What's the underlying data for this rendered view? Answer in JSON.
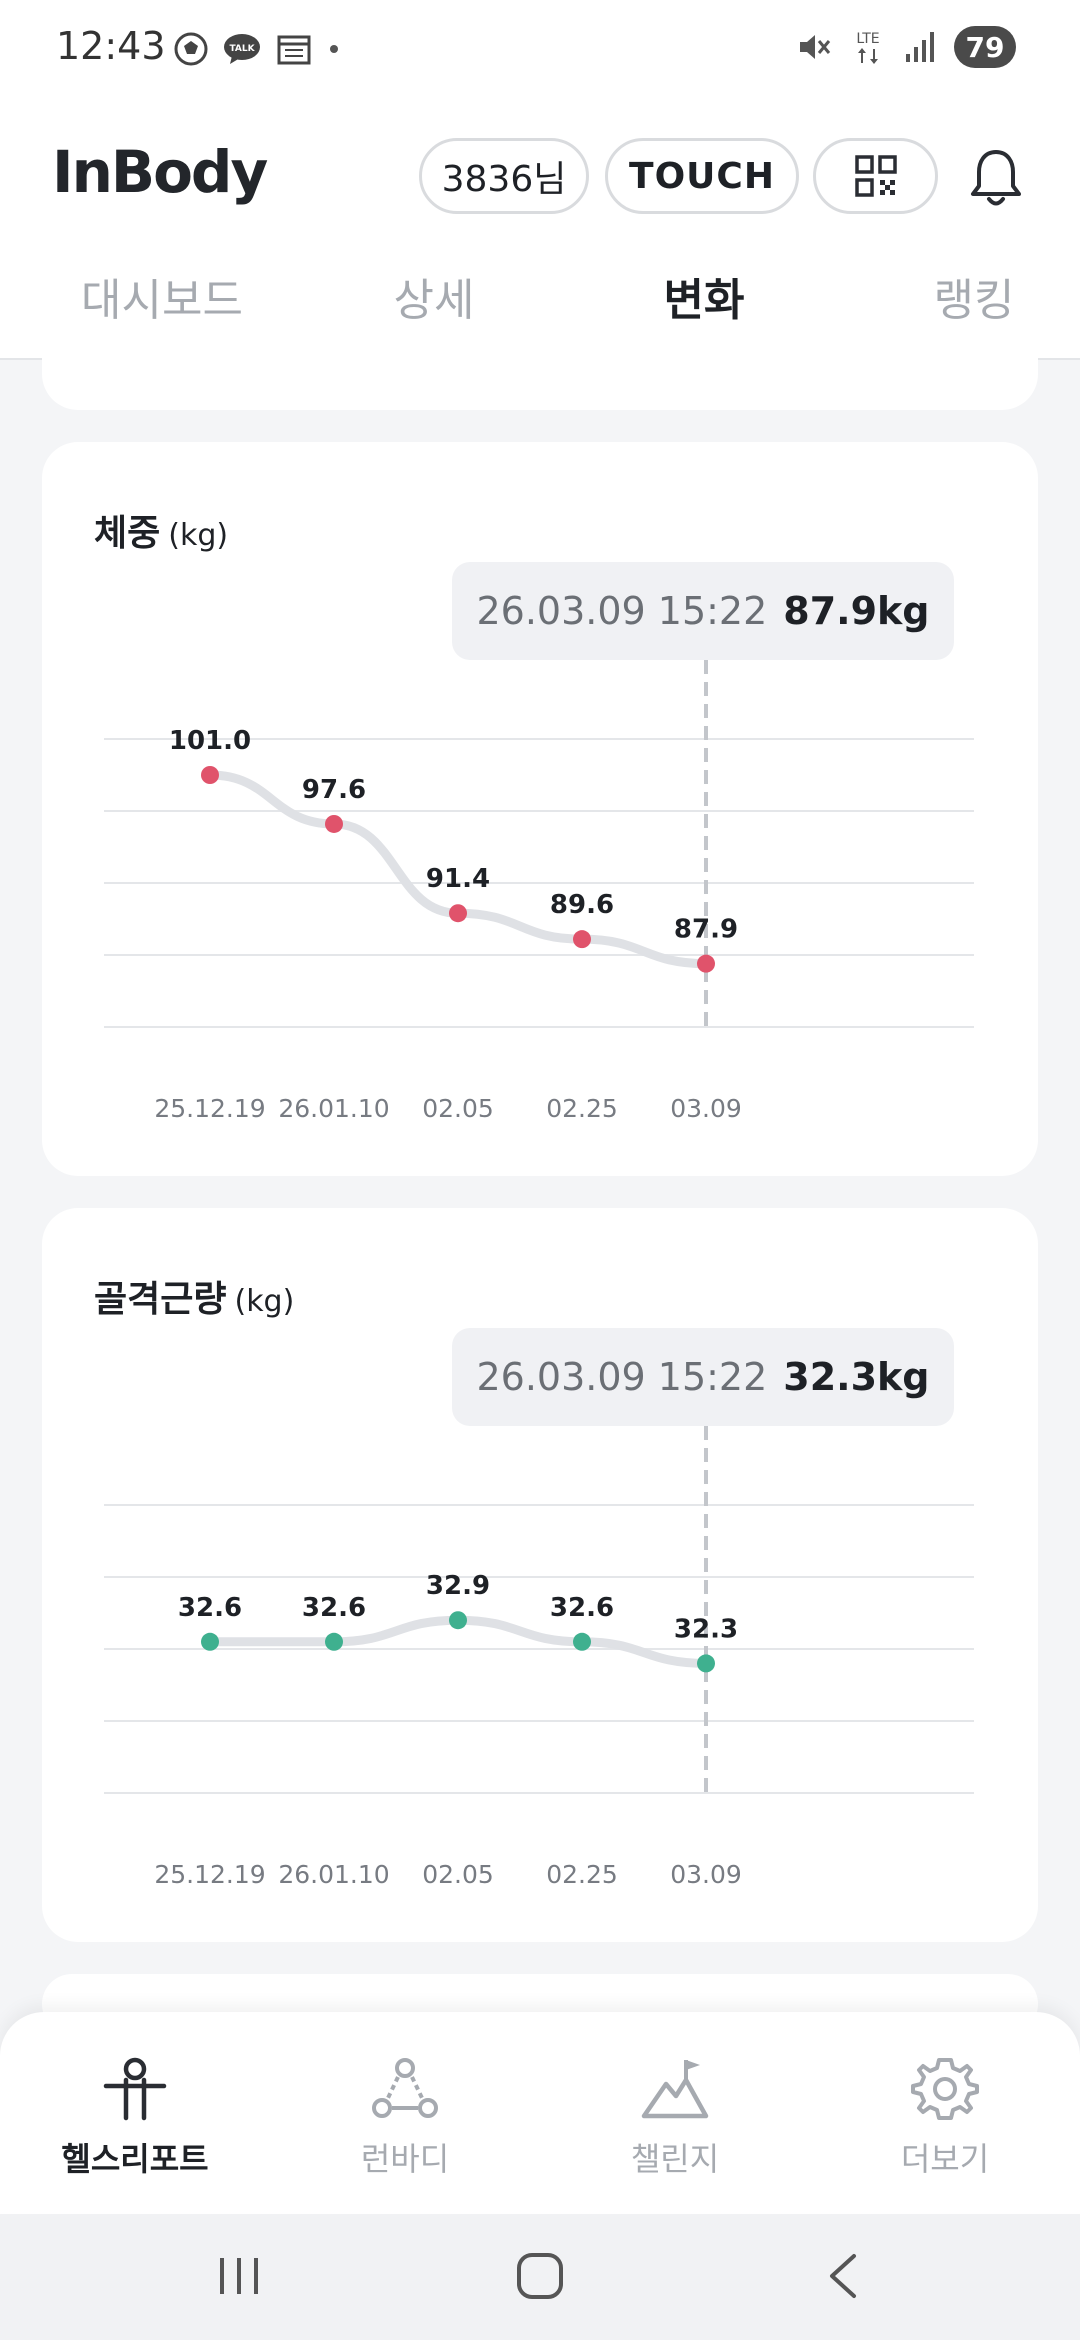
{
  "status_bar": {
    "time": "12:43",
    "battery": "79",
    "network": "LTE"
  },
  "header": {
    "logo": "InBody",
    "user_label": "3836님",
    "touch_label": "TOUCH"
  },
  "tabs": [
    {
      "label": "대시보드",
      "active": false
    },
    {
      "label": "상세",
      "active": false
    },
    {
      "label": "변화",
      "active": true
    },
    {
      "label": "랭킹",
      "active": false
    }
  ],
  "cards": [
    {
      "title": "체중",
      "unit": "(kg)",
      "tooltip_date": "26.03.09 15:22",
      "tooltip_value": "87.9kg",
      "color": "#e0536b"
    },
    {
      "title": "골격근량",
      "unit": "(kg)",
      "tooltip_date": "26.03.09 15:22",
      "tooltip_value": "32.3kg",
      "color": "#3fb08f"
    }
  ],
  "chart_data": [
    {
      "type": "line",
      "categories": [
        "25.12.19",
        "26.01.10",
        "02.05",
        "02.25",
        "03.09"
      ],
      "values": [
        101.0,
        97.6,
        91.4,
        89.6,
        87.9
      ],
      "value_labels": [
        "101.0",
        "97.6",
        "91.4",
        "89.6",
        "87.9"
      ],
      "title": "체중",
      "ylabel": "(kg)",
      "ylim": [
        83.5,
        103.5
      ],
      "grid": true,
      "highlight_index": 4
    },
    {
      "type": "line",
      "categories": [
        "25.12.19",
        "26.01.10",
        "02.05",
        "02.25",
        "03.09"
      ],
      "values": [
        32.6,
        32.6,
        32.9,
        32.6,
        32.3
      ],
      "value_labels": [
        "32.6",
        "32.6",
        "32.9",
        "32.6",
        "32.3"
      ],
      "title": "골격근량",
      "ylabel": "(kg)",
      "ylim": [
        30.5,
        34.5
      ],
      "grid": true,
      "highlight_index": 4
    }
  ],
  "bottom_nav": [
    {
      "label": "헬스리포트",
      "icon": "person-icon",
      "active": true
    },
    {
      "label": "런바디",
      "icon": "runbody-icon",
      "active": false
    },
    {
      "label": "챌린지",
      "icon": "mountain-flag-icon",
      "active": false
    },
    {
      "label": "더보기",
      "icon": "gear-icon",
      "active": false
    }
  ]
}
